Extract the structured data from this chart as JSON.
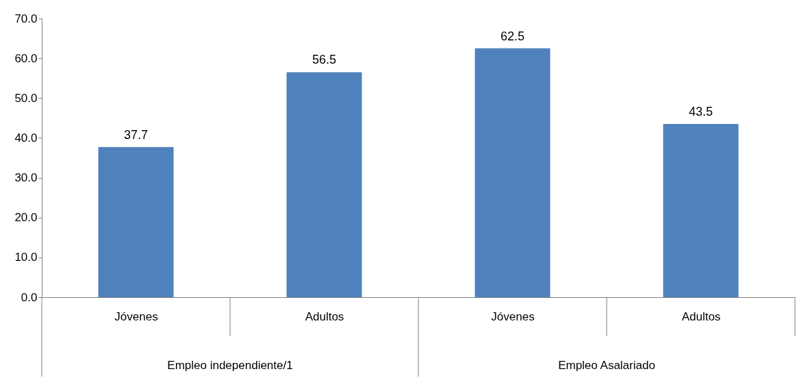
{
  "chart_data": {
    "type": "bar",
    "categories": [
      "Jóvenes",
      "Adultos",
      "Jóvenes",
      "Adultos"
    ],
    "values": [
      37.7,
      56.5,
      62.5,
      43.5
    ],
    "color": "#4f81bd",
    "ylim": [
      0,
      70
    ],
    "yticks": [
      {
        "value": 0,
        "label": "0.0"
      },
      {
        "value": 10,
        "label": "10.0"
      },
      {
        "value": 20,
        "label": "20.0"
      },
      {
        "value": 30,
        "label": "30.0"
      },
      {
        "value": 40,
        "label": "40.0"
      },
      {
        "value": 50,
        "label": "50.0"
      },
      {
        "value": 60,
        "label": "60.0"
      },
      {
        "value": 70,
        "label": "70.0"
      }
    ],
    "data_labels": true,
    "annotations": [
      "Empleo independiente/1",
      "Empleo Asalariado"
    ]
  }
}
